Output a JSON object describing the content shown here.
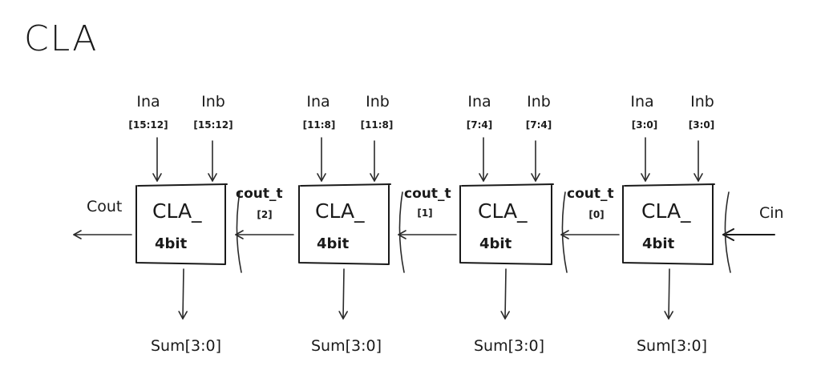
{
  "title": "CLA",
  "blocks": [
    {
      "in_a": "Ina",
      "in_a_range": "[15:12]",
      "in_b": "Inb",
      "in_b_range": "[15:12]",
      "name_top": "CLA_",
      "name_bottom": "4bit",
      "sum": "Sum[3:0]"
    },
    {
      "in_a": "Ina",
      "in_a_range": "[11:8]",
      "in_b": "Inb",
      "in_b_range": "[11:8]",
      "name_top": "CLA_",
      "name_bottom": "4bit",
      "sum": "Sum[3:0]"
    },
    {
      "in_a": "Ina",
      "in_a_range": "[7:4]",
      "in_b": "Inb",
      "in_b_range": "[7:4]",
      "name_top": "CLA_",
      "name_bottom": "4bit",
      "sum": "Sum[3:0]"
    },
    {
      "in_a": "Ina",
      "in_a_range": "[3:0]",
      "in_b": "Inb",
      "in_b_range": "[3:0]",
      "name_top": "CLA_",
      "name_bottom": "4bit",
      "sum": "Sum[3:0]"
    }
  ],
  "carries": [
    {
      "name": "cout_t",
      "index": "[2]"
    },
    {
      "name": "cout_t",
      "index": "[1]"
    },
    {
      "name": "cout_t",
      "index": "[0]"
    }
  ],
  "cout_label": "Cout",
  "cin_label": "Cin"
}
